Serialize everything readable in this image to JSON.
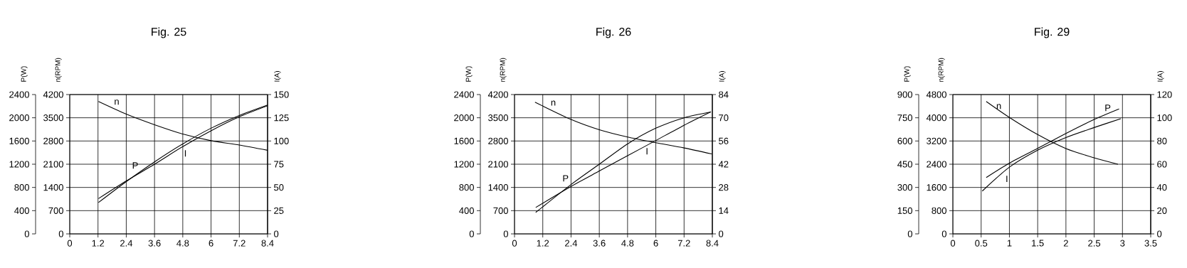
{
  "chart_data": [
    {
      "type": "line",
      "title": "Fig. 25",
      "ylabel": "P(W)",
      "y2label": "I(A)",
      "y3label": "n(RPM)",
      "grid": true,
      "xlim": [
        0,
        8.4
      ],
      "xticks": [
        0,
        1.2,
        2.4,
        3.6,
        4.8,
        6,
        7.2,
        8.4
      ],
      "ylim": [
        0,
        2400
      ],
      "yticks": [
        0,
        400,
        800,
        1200,
        1600,
        2000,
        2400
      ],
      "y2lim": [
        0,
        150
      ],
      "y2ticks": [
        0,
        25,
        50,
        75,
        100,
        125,
        150
      ],
      "y3lim": [
        0,
        4200
      ],
      "y3ticks": [
        0,
        700,
        1400,
        2100,
        2800,
        3500,
        4200
      ],
      "series": [
        {
          "name": "n",
          "axis": "y3",
          "color": "#000000",
          "x": [
            1.22,
            2.4,
            3.6,
            4.8,
            6,
            7.2,
            8.4
          ],
          "values": [
            3990,
            3610,
            3290,
            3010,
            2810,
            2680,
            2520
          ]
        },
        {
          "name": "P",
          "axis": "y",
          "color": "#000000",
          "x": [
            1.22,
            2.4,
            3.6,
            4.8,
            6,
            7.2,
            8.4
          ],
          "values": [
            540,
            900,
            1240,
            1550,
            1820,
            2040,
            2220
          ]
        },
        {
          "name": "I",
          "axis": "y2",
          "color": "#000000",
          "x": [
            1.22,
            2.4,
            3.6,
            4.8,
            6,
            7.2,
            8.4
          ],
          "values": [
            38,
            57,
            75,
            94,
            111,
            126,
            138
          ]
        }
      ]
    },
    {
      "type": "line",
      "title": "Fig. 26",
      "ylabel": "P(W)",
      "y2label": "I(A)",
      "y3label": "n(RPM)",
      "grid": true,
      "xlim": [
        0,
        8.4
      ],
      "xticks": [
        0,
        1.2,
        2.4,
        3.6,
        4.8,
        6,
        7.2,
        8.4
      ],
      "ylim": [
        0,
        2400
      ],
      "yticks": [
        0,
        400,
        800,
        1200,
        1600,
        2000,
        2400
      ],
      "y2lim": [
        0,
        84
      ],
      "y2ticks": [
        0,
        14,
        28,
        42,
        56,
        70,
        84
      ],
      "y3lim": [
        0,
        4200
      ],
      "y3ticks": [
        0,
        700,
        1400,
        2100,
        2800,
        3500,
        4200
      ],
      "series": [
        {
          "name": "n",
          "axis": "y3",
          "color": "#000000",
          "x": [
            0.87,
            2.4,
            3.6,
            4.8,
            6,
            7.2,
            8.37
          ],
          "values": [
            3970,
            3450,
            3140,
            2920,
            2750,
            2590,
            2410
          ]
        },
        {
          "name": "P",
          "axis": "y",
          "color": "#000000",
          "x": [
            0.9,
            2.4,
            3.6,
            4.8,
            6,
            7.2,
            8.34
          ],
          "values": [
            370,
            850,
            1200,
            1550,
            1820,
            2000,
            2100
          ]
        },
        {
          "name": "I",
          "axis": "y2",
          "color": "#000000",
          "x": [
            0.9,
            2.4,
            3.6,
            4.8,
            6,
            7.2,
            8.34
          ],
          "values": [
            15.9,
            28.6,
            37.9,
            47.1,
            56.3,
            65.5,
            73.6
          ]
        }
      ]
    },
    {
      "type": "line",
      "title": "Fig. 29",
      "ylabel": "P(W)",
      "y2label": "I(A)",
      "y3label": "n(RPM)",
      "grid": true,
      "xlim": [
        0,
        3.5
      ],
      "xticks": [
        0,
        0.5,
        1,
        1.5,
        2,
        2.5,
        3,
        3.5
      ],
      "ylim": [
        0,
        900
      ],
      "yticks": [
        0,
        150,
        300,
        450,
        600,
        750,
        900
      ],
      "y2lim": [
        0,
        120
      ],
      "y2ticks": [
        0,
        20,
        40,
        60,
        80,
        100,
        120
      ],
      "y3lim": [
        0,
        4800
      ],
      "y3ticks": [
        0,
        800,
        1600,
        2400,
        3200,
        4000,
        4800
      ],
      "series": [
        {
          "name": "n",
          "axis": "y3",
          "color": "#000000",
          "x": [
            0.59,
            1,
            1.5,
            2,
            2.5,
            2.92
          ],
          "values": [
            4560,
            4010,
            3420,
            2940,
            2620,
            2400
          ]
        },
        {
          "name": "P",
          "axis": "y",
          "color": "#000000",
          "x": [
            0.59,
            1,
            1.5,
            2,
            2.5,
            2.94
          ],
          "values": [
            364,
            457,
            552,
            649,
            739,
            807
          ]
        },
        {
          "name": "I",
          "axis": "y2",
          "color": "#000000",
          "x": [
            0.52,
            1,
            1.5,
            2,
            2.5,
            2.97
          ],
          "values": [
            36.9,
            57.5,
            72.1,
            83,
            91.6,
            99.2
          ]
        }
      ]
    }
  ]
}
